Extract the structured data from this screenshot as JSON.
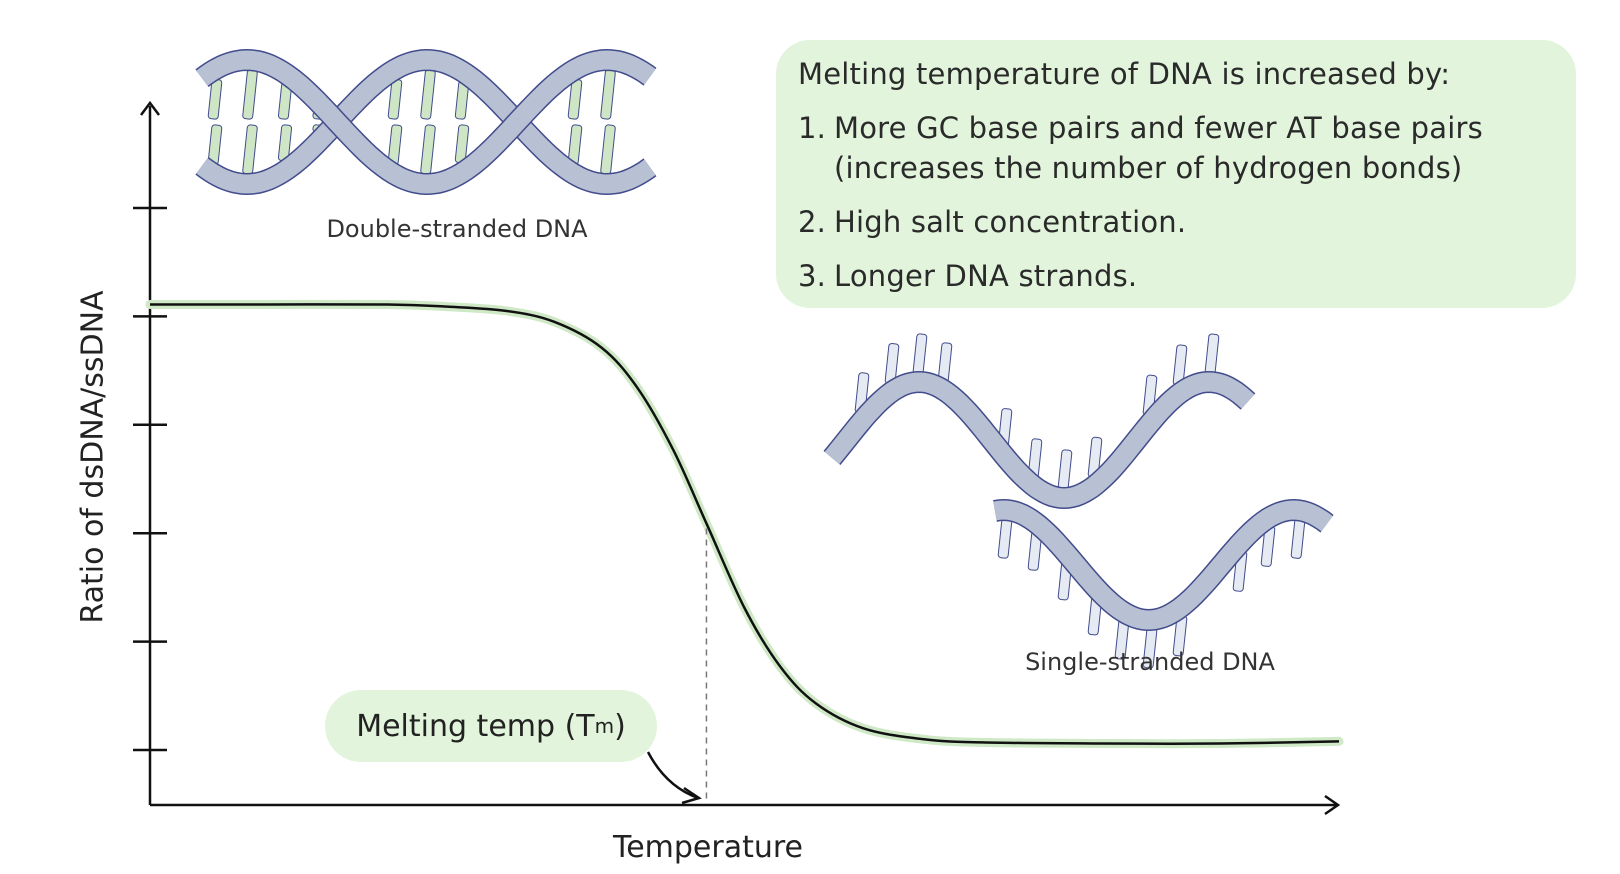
{
  "info_box": {
    "title": "Melting temperature of DNA is increased by:",
    "items": [
      {
        "num": "1.",
        "text": "More GC base pairs and fewer AT base pairs (increases the number of hydrogen bonds)"
      },
      {
        "num": "2.",
        "text": "High salt concentration."
      },
      {
        "num": "3.",
        "text": "Longer DNA strands."
      }
    ]
  },
  "illustrations": {
    "double_label": "Double-stranded DNA",
    "single_label": "Single-stranded DNA"
  },
  "tm_label": {
    "text": "Melting temp (T",
    "sub": "m",
    "close": ")"
  },
  "colors": {
    "pill": "#e2f5dc",
    "ribbon": "#b8c0d4",
    "ribbon_outline": "#424c8c",
    "rung_ds": "#cfe6c6",
    "rung_ss": "#e6eaf3",
    "curve": "#111111",
    "curve_glow": "#cfe8c6"
  },
  "chart_data": {
    "type": "line",
    "title": "",
    "xlabel": "Temperature",
    "ylabel": "Ratio of dsDNA/ssDNA",
    "xlim": [
      0,
      100
    ],
    "ylim": [
      0,
      6.3
    ],
    "y_ticks": [
      1,
      2,
      3,
      4,
      5,
      6
    ],
    "grid": false,
    "tm_x": 46.8,
    "series": [
      {
        "name": "dsDNA/ssDNA ratio",
        "x": [
          0,
          10,
          20,
          25,
          30,
          34,
          38,
          41,
          44,
          46.8,
          50,
          53,
          56,
          60,
          65,
          70,
          80,
          90,
          100
        ],
        "y": [
          5.11,
          5.11,
          5.11,
          5.09,
          5.05,
          4.95,
          4.71,
          4.34,
          3.77,
          3.09,
          2.31,
          1.77,
          1.43,
          1.2,
          1.1,
          1.07,
          1.06,
          1.06,
          1.08
        ]
      }
    ]
  }
}
